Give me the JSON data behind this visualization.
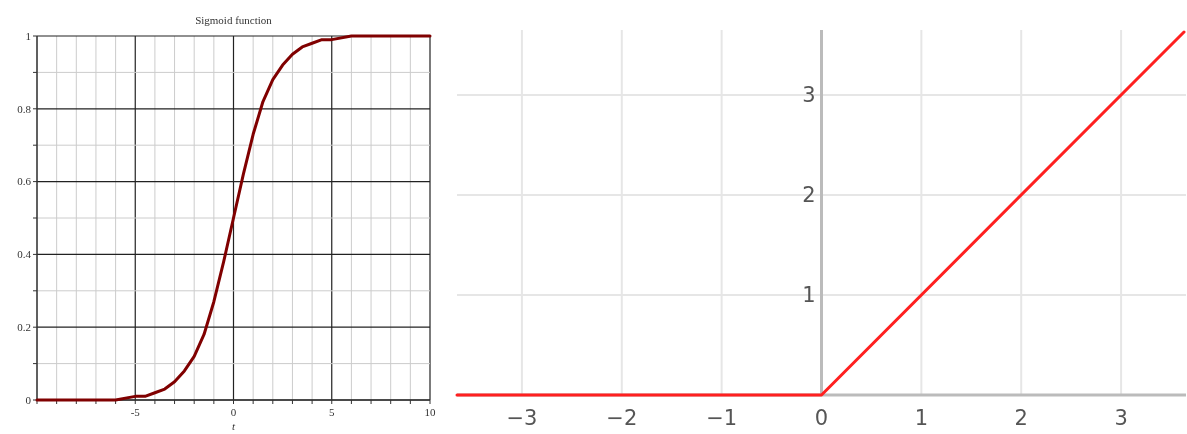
{
  "chart_data": [
    {
      "type": "line",
      "title": "Sigmoid function",
      "xlabel": "t",
      "x": [
        -10,
        -8,
        -6,
        -5,
        -4.5,
        -4,
        -3.5,
        -3,
        -2.5,
        -2,
        -1.5,
        -1,
        -0.5,
        0,
        0.5,
        1,
        1.5,
        2,
        2.5,
        3,
        3.5,
        4,
        4.5,
        5,
        6,
        8,
        10
      ],
      "series": [
        {
          "color": "#800000",
          "values": [
            0,
            0,
            0,
            0.01,
            0.01,
            0.02,
            0.03,
            0.05,
            0.08,
            0.12,
            0.18,
            0.27,
            0.38,
            0.5,
            0.62,
            0.73,
            0.82,
            0.88,
            0.92,
            0.95,
            0.97,
            0.98,
            0.99,
            0.99,
            1,
            1,
            1
          ]
        }
      ],
      "xlim": [
        -10,
        10
      ],
      "xticks": [
        {
          "value": -10,
          "label": null
        },
        {
          "value": -9,
          "label": null
        },
        {
          "value": -8,
          "label": null
        },
        {
          "value": -7,
          "label": null
        },
        {
          "value": -6,
          "label": null
        },
        {
          "value": -5,
          "label": "-5"
        },
        {
          "value": -4,
          "label": null
        },
        {
          "value": -3,
          "label": null
        },
        {
          "value": -2,
          "label": null
        },
        {
          "value": -1,
          "label": null
        },
        0,
        {
          "value": 1,
          "label": null
        },
        {
          "value": 2,
          "label": null
        },
        {
          "value": 3,
          "label": null
        },
        {
          "value": 4,
          "label": null
        },
        5,
        {
          "value": 6,
          "label": null
        },
        {
          "value": 7,
          "label": null
        },
        {
          "value": 8,
          "label": null
        },
        {
          "value": 9,
          "label": null
        },
        10
      ],
      "ylim": [
        0,
        1
      ],
      "yticks": [
        0,
        {
          "value": 0.1,
          "label": null
        },
        0.2,
        {
          "value": 0.3,
          "label": null
        },
        0.4,
        {
          "value": 0.5,
          "label": null
        },
        0.6,
        {
          "value": 0.7,
          "label": null
        },
        0.8,
        {
          "value": 0.9,
          "label": null
        },
        1
      ],
      "grid": true,
      "marker": "none",
      "line_style": "solid"
    },
    {
      "type": "line",
      "x": [
        -3.65,
        0,
        3.63
      ],
      "series": [
        {
          "color": "#ff2020",
          "values": [
            0,
            0,
            3.63
          ]
        }
      ],
      "xlim": [
        -3.65,
        3.65
      ],
      "xticks": [
        {
          "value": -3,
          "label": "−3"
        },
        {
          "value": -2,
          "label": "−2"
        },
        {
          "value": -1,
          "label": "−1"
        },
        0,
        1,
        2,
        3
      ],
      "ylim": [
        0,
        3.65
      ],
      "yticks": [
        1,
        2,
        3
      ],
      "grid": true,
      "marker": "none",
      "line_style": "solid"
    }
  ]
}
